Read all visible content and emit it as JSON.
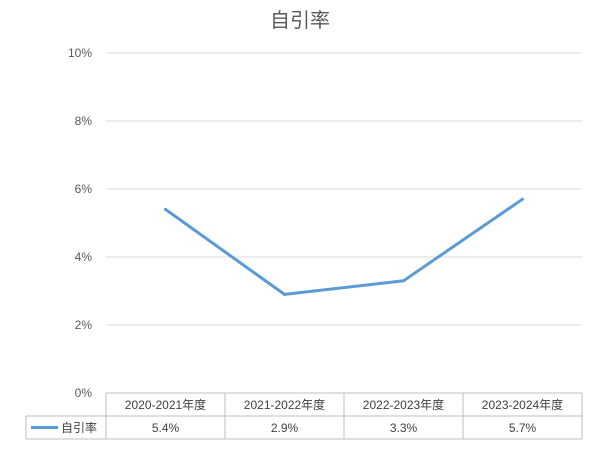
{
  "chart_data": {
    "type": "line",
    "title": "自引率",
    "categories": [
      "2020-2021年度",
      "2021-2022年度",
      "2022-2023年度",
      "2023-2024年度"
    ],
    "series": [
      {
        "name": "自引率",
        "values": [
          5.4,
          2.9,
          3.3,
          5.7
        ],
        "labels": [
          "5.4%",
          "2.9%",
          "3.3%",
          "5.7%"
        ],
        "color": "#5b9bd5"
      }
    ],
    "ylim": [
      0,
      10
    ],
    "yticks": [
      "0%",
      "2%",
      "4%",
      "6%",
      "8%",
      "10%"
    ],
    "grid": true,
    "data_table": true,
    "xlabel": "",
    "ylabel": ""
  }
}
